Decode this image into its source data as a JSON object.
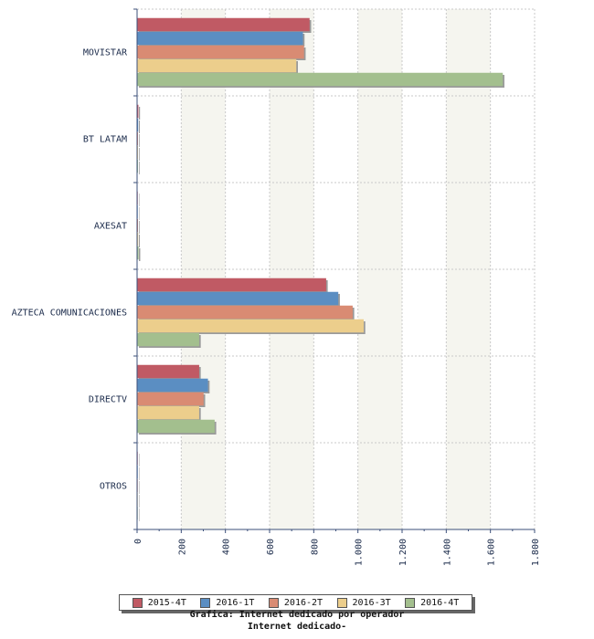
{
  "chart_data": {
    "type": "bar",
    "orientation": "horizontal",
    "categories": [
      "MOVISTAR",
      "BT LATAM",
      "AXESAT",
      "AZTECA COMUNICACIONES",
      "DIRECTV",
      "OTROS"
    ],
    "series": [
      {
        "name": "2015-4T",
        "color": "#c05a64",
        "values": [
          780,
          5,
          2,
          855,
          280,
          2
        ]
      },
      {
        "name": "2016-1T",
        "color": "#5b8ec2",
        "values": [
          750,
          4,
          2,
          910,
          320,
          2
        ]
      },
      {
        "name": "2016-2T",
        "color": "#d98b73",
        "values": [
          755,
          3,
          3,
          975,
          300,
          2
        ]
      },
      {
        "name": "2016-3T",
        "color": "#ecce8c",
        "values": [
          720,
          3,
          4,
          1025,
          280,
          2
        ]
      },
      {
        "name": "2016-4T",
        "color": "#a3bf8e",
        "values": [
          1655,
          3,
          6,
          280,
          350,
          2
        ]
      }
    ],
    "xlim": [
      0,
      1800
    ],
    "xticks": [
      "0",
      "200",
      "400",
      "600",
      "800",
      "1.000",
      "1.200",
      "1.400",
      "1.600",
      "1.800"
    ],
    "grid": true,
    "legend": "bottom"
  },
  "captions": {
    "line1": "Grafica: Internet dedicado por operador",
    "line2": "Internet dedicado-"
  }
}
